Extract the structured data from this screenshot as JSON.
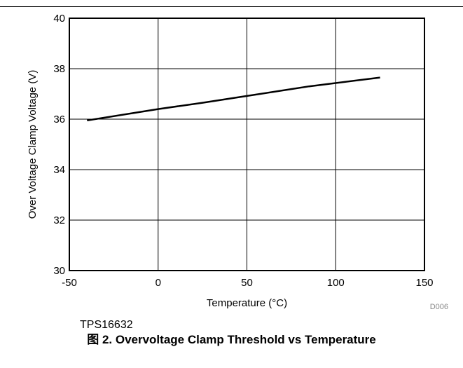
{
  "chart_data": {
    "type": "line",
    "xlabel": "Temperature (°C)",
    "ylabel": "Over Voltage Clamp Voltage (V)",
    "xlim": [
      -50,
      150
    ],
    "ylim": [
      30,
      40
    ],
    "xticks": [
      -50,
      0,
      50,
      100,
      150
    ],
    "yticks": [
      30,
      32,
      34,
      36,
      38,
      40
    ],
    "xtick_labels": [
      "-50",
      "0",
      "50",
      "100",
      "150"
    ],
    "ytick_labels": [
      "30",
      "32",
      "34",
      "36",
      "38",
      "40"
    ],
    "grid": true,
    "series": [
      {
        "x": [
          -40,
          0,
          25,
          50,
          85,
          125
        ],
        "y": [
          35.95,
          36.4,
          36.65,
          36.92,
          37.3,
          37.65
        ]
      }
    ],
    "series_color": "#000000",
    "corner_code": "D006",
    "part_number": "TPS16632"
  },
  "caption": "图 2. Overvoltage Clamp Threshold vs Temperature"
}
